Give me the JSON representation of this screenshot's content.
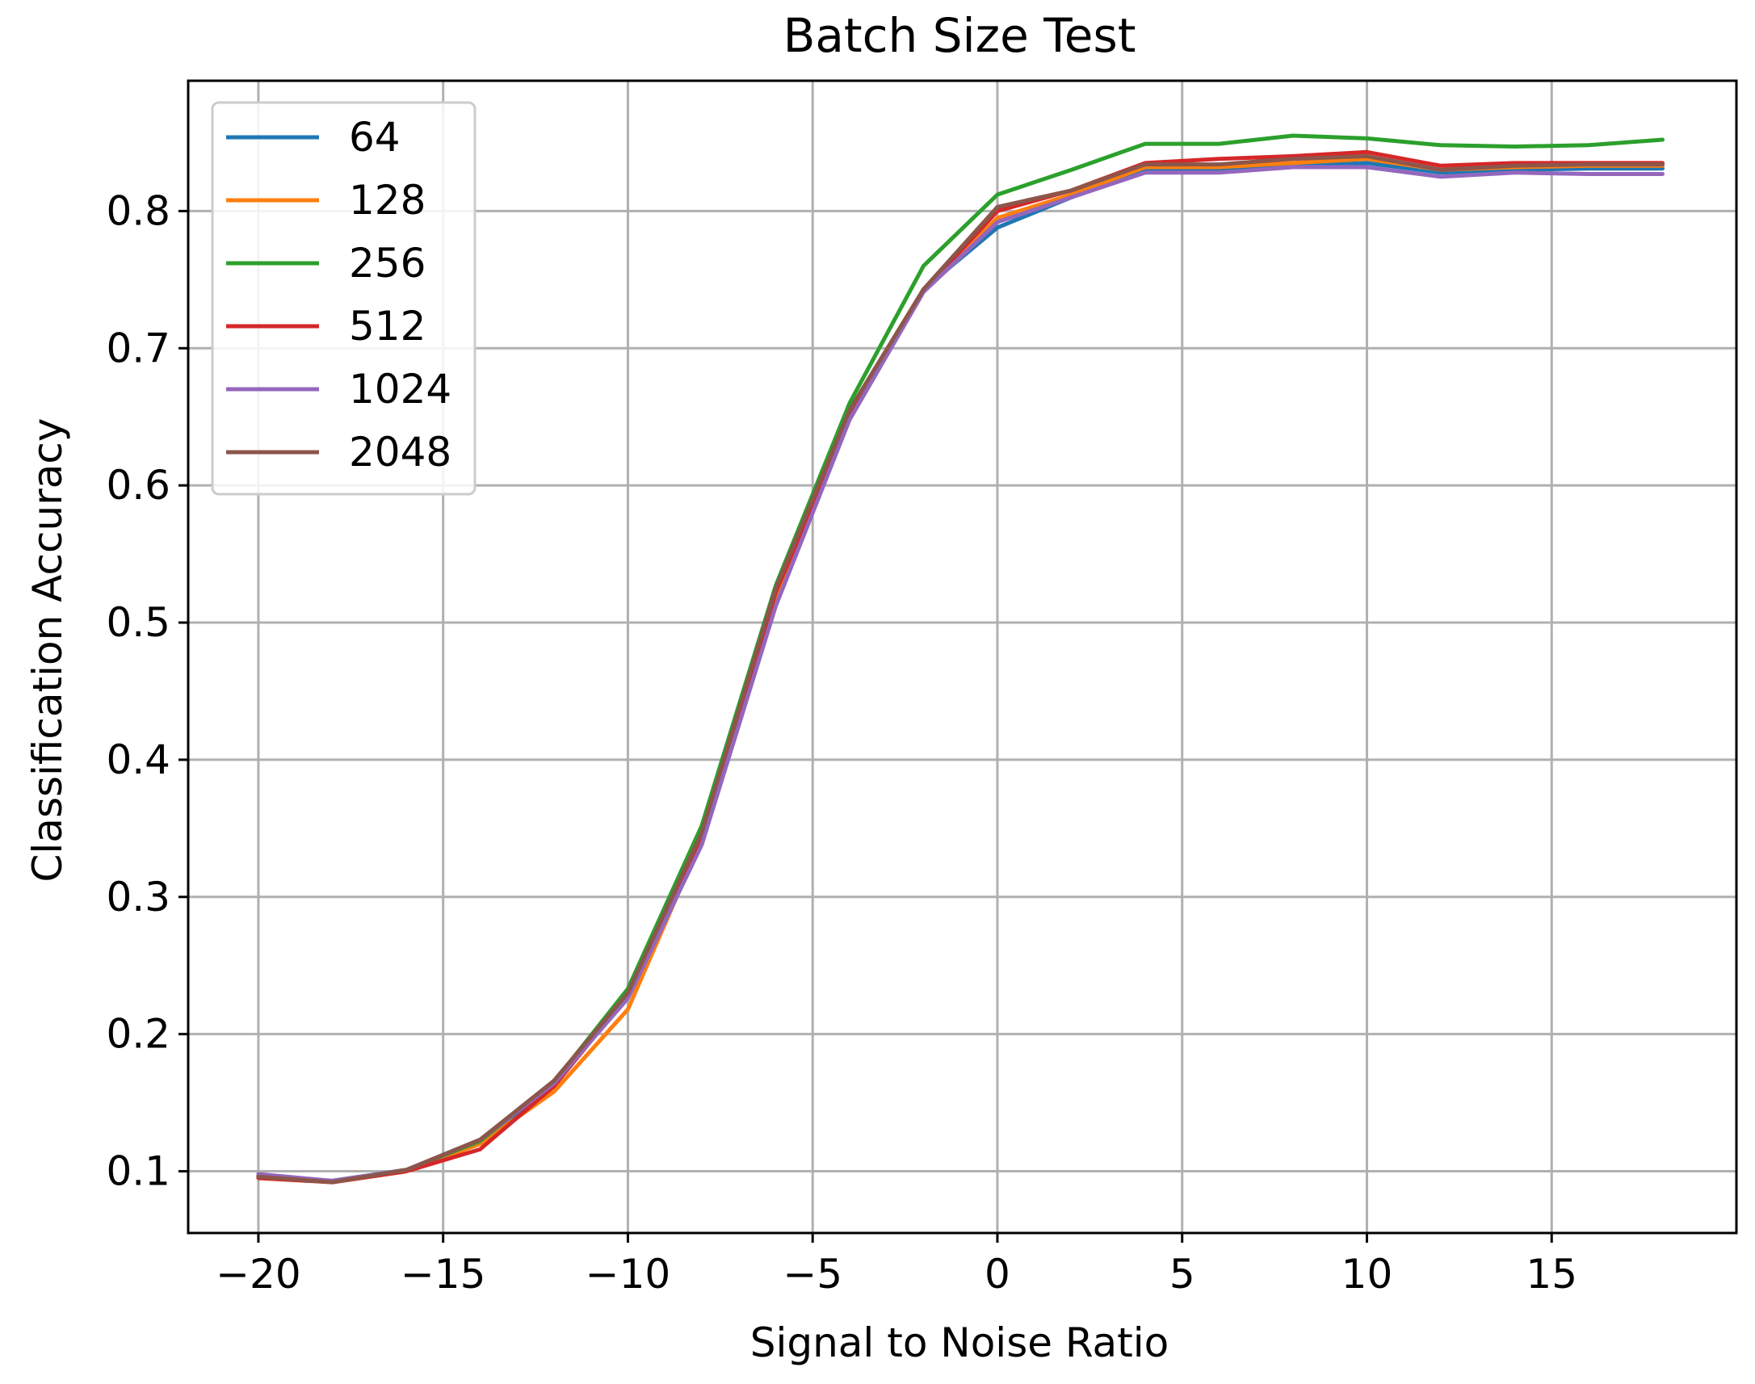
{
  "chart_data": {
    "type": "line",
    "title": "Batch Size Test",
    "xlabel": "Signal to Noise Ratio",
    "ylabel": "Classification Accuracy",
    "xlim": [
      -21.9,
      20
    ],
    "ylim": [
      0.055,
      0.895
    ],
    "xticks": [
      -20,
      -15,
      -10,
      -5,
      0,
      5,
      10,
      15
    ],
    "xtick_labels": [
      "−20",
      "−15",
      "−10",
      "−5",
      "0",
      "5",
      "10",
      "15"
    ],
    "yticks": [
      0.1,
      0.2,
      0.3,
      0.4,
      0.5,
      0.6,
      0.7,
      0.8
    ],
    "ytick_labels": [
      "0.1",
      "0.2",
      "0.3",
      "0.4",
      "0.5",
      "0.6",
      "0.7",
      "0.8"
    ],
    "grid": true,
    "legend_position": "top-left",
    "x": [
      -20,
      -18,
      -16,
      -14,
      -12,
      -10,
      -8,
      -6,
      -4,
      -2,
      0,
      2,
      4,
      6,
      8,
      10,
      12,
      14,
      16,
      18
    ],
    "series": [
      {
        "name": "64",
        "color": "#1f77b4",
        "values": [
          0.097,
          0.093,
          0.101,
          0.121,
          0.163,
          0.228,
          0.345,
          0.523,
          0.652,
          0.743,
          0.788,
          0.81,
          0.83,
          0.83,
          0.833,
          0.835,
          0.828,
          0.83,
          0.831,
          0.831
        ]
      },
      {
        "name": "128",
        "color": "#ff7f0e",
        "values": [
          0.096,
          0.092,
          0.1,
          0.12,
          0.158,
          0.218,
          0.342,
          0.52,
          0.65,
          0.742,
          0.795,
          0.812,
          0.832,
          0.832,
          0.835,
          0.838,
          0.83,
          0.832,
          0.833,
          0.833
        ]
      },
      {
        "name": "256",
        "color": "#2ca02c",
        "values": [
          0.096,
          0.093,
          0.101,
          0.122,
          0.165,
          0.233,
          0.352,
          0.527,
          0.66,
          0.76,
          0.812,
          0.83,
          0.849,
          0.849,
          0.855,
          0.853,
          0.848,
          0.847,
          0.848,
          0.852
        ]
      },
      {
        "name": "512",
        "color": "#d62728",
        "values": [
          0.095,
          0.092,
          0.1,
          0.116,
          0.162,
          0.228,
          0.343,
          0.522,
          0.65,
          0.742,
          0.8,
          0.815,
          0.835,
          0.838,
          0.84,
          0.843,
          0.833,
          0.835,
          0.835,
          0.835
        ]
      },
      {
        "name": "1024",
        "color": "#9467bd",
        "values": [
          0.098,
          0.093,
          0.101,
          0.123,
          0.164,
          0.226,
          0.338,
          0.512,
          0.648,
          0.741,
          0.792,
          0.81,
          0.828,
          0.828,
          0.832,
          0.832,
          0.825,
          0.828,
          0.827,
          0.827
        ]
      },
      {
        "name": "2048",
        "color": "#8c564b",
        "values": [
          0.096,
          0.092,
          0.101,
          0.123,
          0.166,
          0.23,
          0.347,
          0.525,
          0.655,
          0.743,
          0.803,
          0.815,
          0.834,
          0.834,
          0.838,
          0.84,
          0.83,
          0.833,
          0.834,
          0.834
        ]
      }
    ]
  }
}
